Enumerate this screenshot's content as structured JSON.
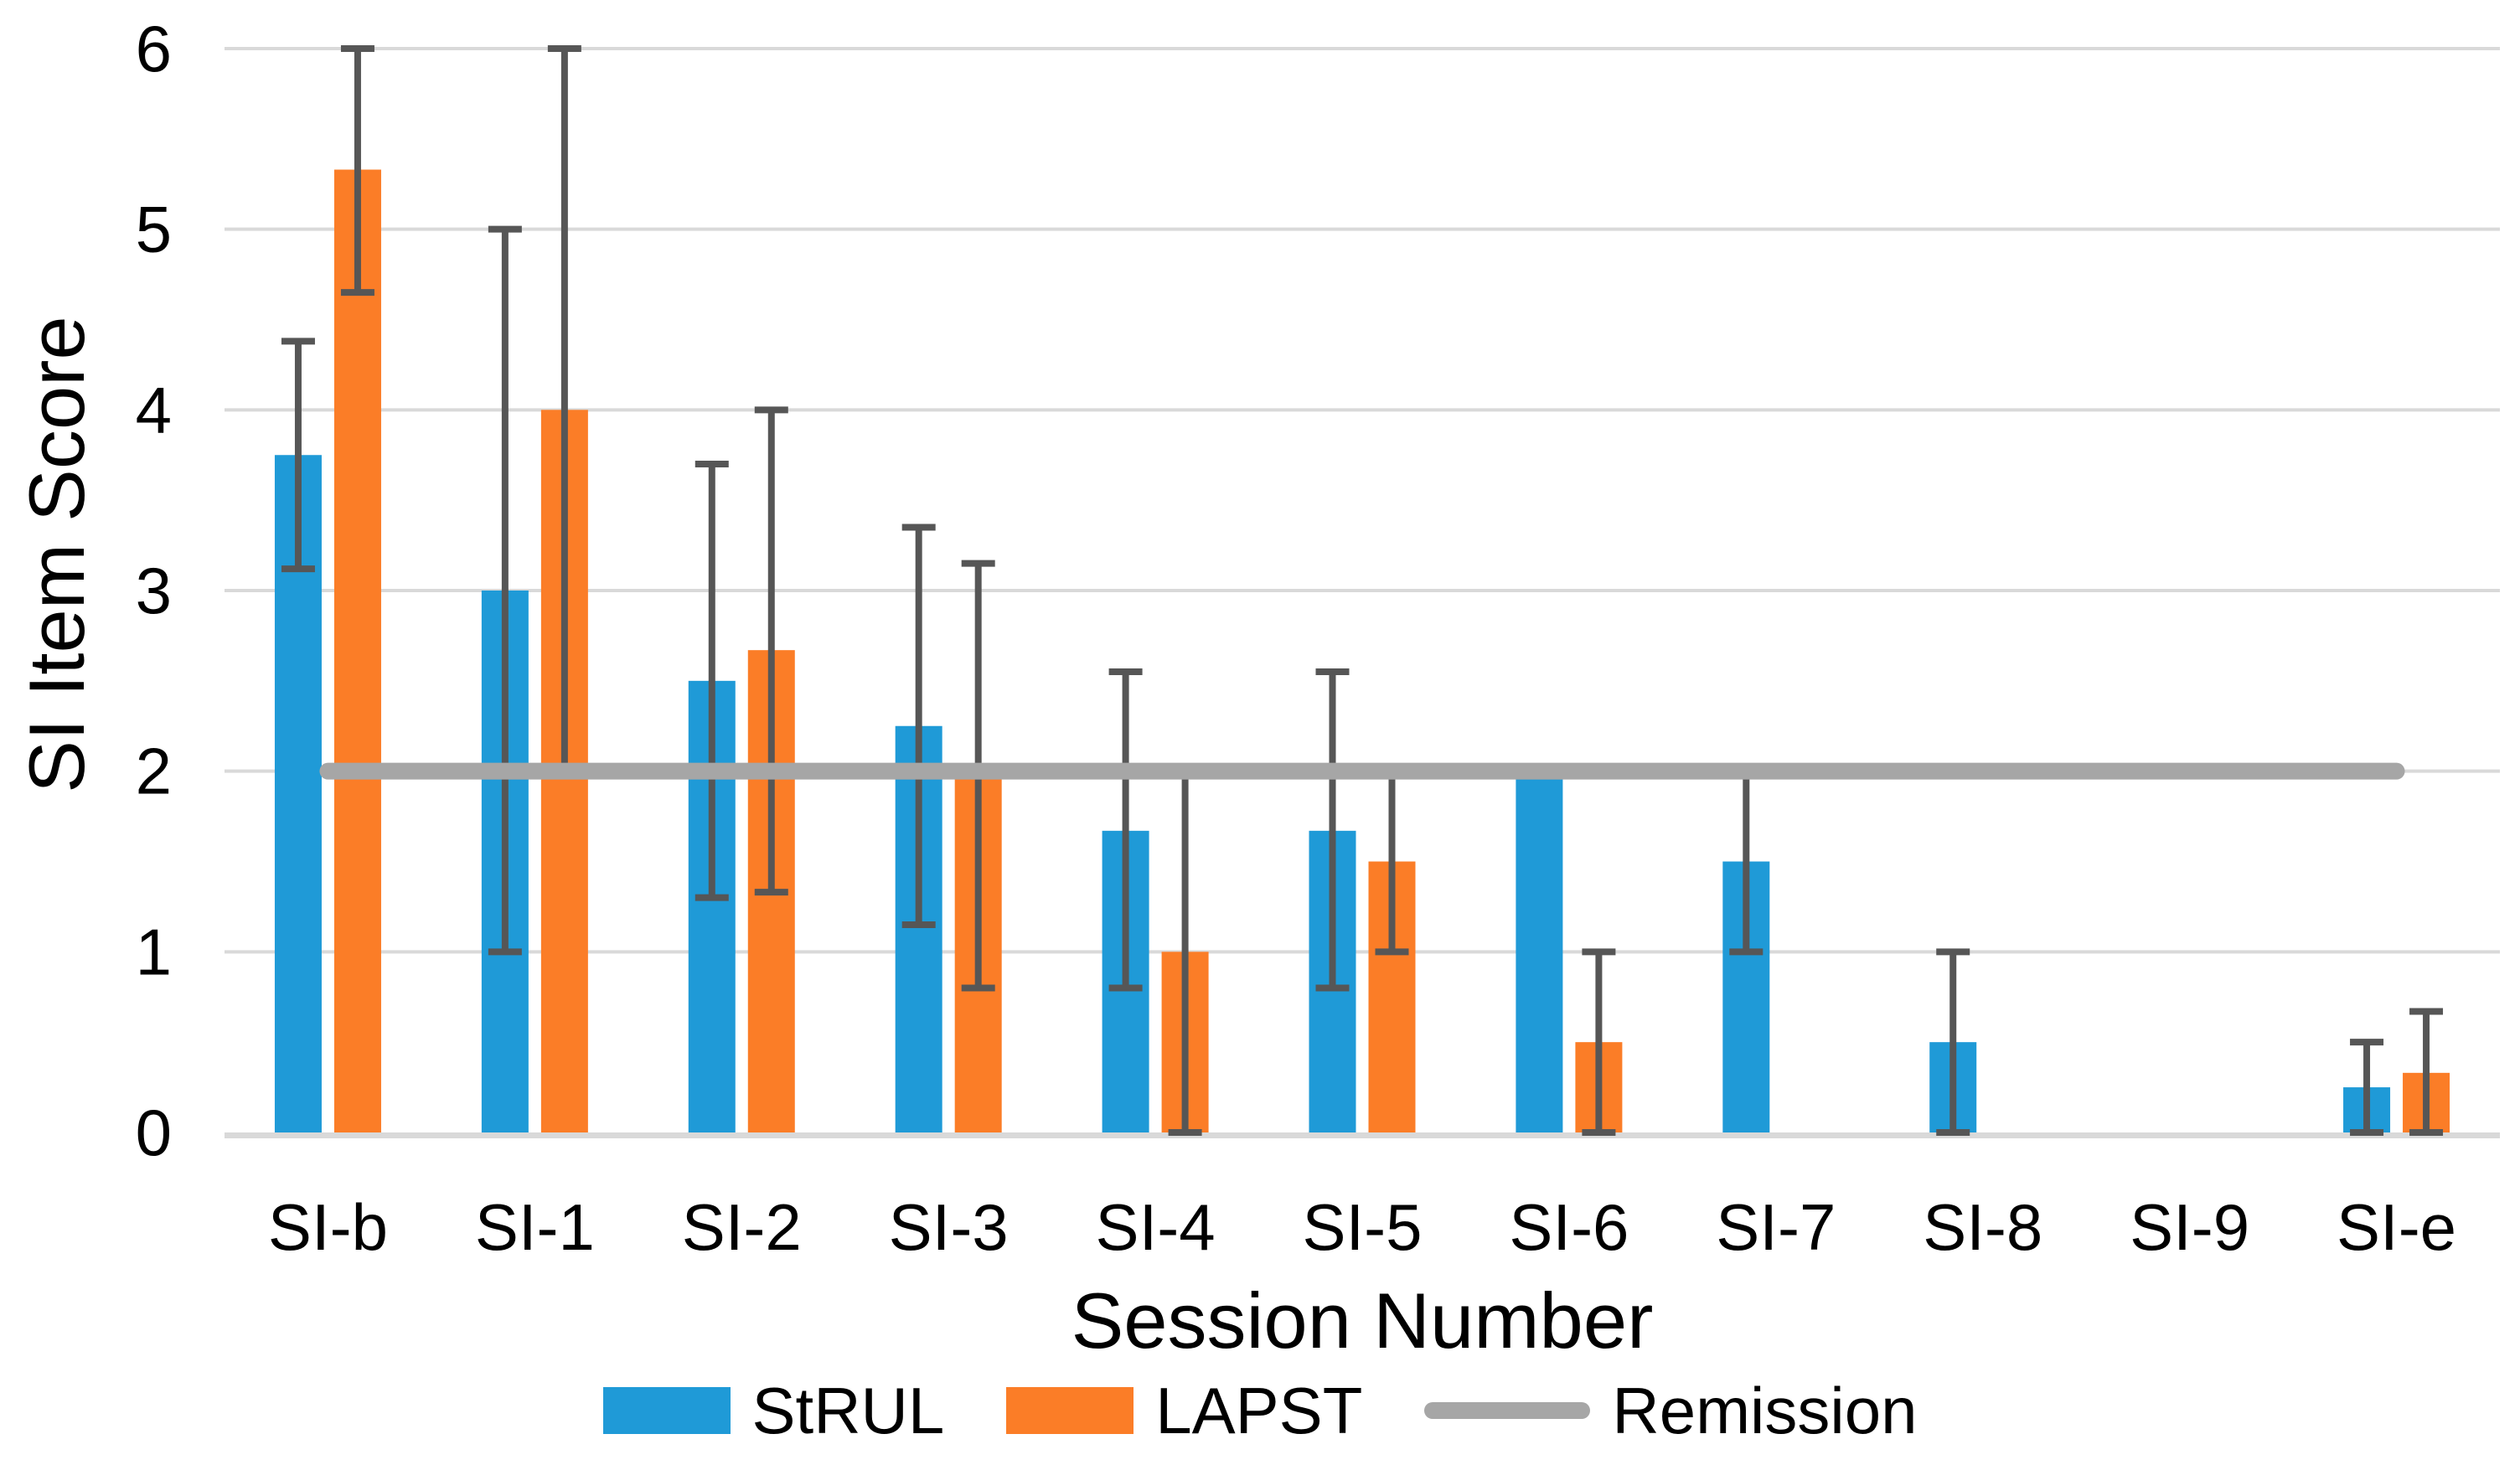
{
  "chart_data": {
    "type": "bar",
    "title": "",
    "xlabel": "Session Number",
    "ylabel": "SI Item Score",
    "ylim": [
      0,
      6
    ],
    "y_ticks": [
      0,
      1,
      2,
      3,
      4,
      5,
      6
    ],
    "grid": "horizontal",
    "legend_position": "bottom",
    "categories": [
      "SI-b",
      "SI-1",
      "SI-2",
      "SI-3",
      "SI-4",
      "SI-5",
      "SI-6",
      "SI-7",
      "SI-8",
      "SI-9",
      "SI-e"
    ],
    "series": [
      {
        "name": "StRUL",
        "color": "#1F9AD7",
        "values": [
          3.75,
          3.0,
          2.5,
          2.25,
          1.67,
          1.67,
          2.0,
          1.5,
          0.5,
          null,
          0.25
        ],
        "error_low": [
          3.12,
          1.0,
          1.3,
          1.15,
          0.8,
          0.8,
          null,
          1.0,
          0.0,
          null,
          0.0
        ],
        "error_high": [
          4.38,
          5.0,
          3.7,
          3.35,
          2.55,
          2.55,
          null,
          2.0,
          1.0,
          null,
          0.5
        ]
      },
      {
        "name": "LAPST",
        "color": "#FB7D27",
        "values": [
          5.33,
          4.0,
          2.67,
          2.0,
          1.0,
          1.5,
          0.5,
          null,
          null,
          null,
          0.33
        ],
        "error_low": [
          4.65,
          2.0,
          1.33,
          0.8,
          0.0,
          1.0,
          0.0,
          null,
          null,
          null,
          0.0
        ],
        "error_high": [
          6.0,
          6.0,
          4.0,
          3.15,
          2.0,
          2.0,
          1.0,
          null,
          null,
          null,
          0.67
        ]
      }
    ],
    "remission": {
      "label": "Remission",
      "value": 2,
      "color": "#A6A6A6",
      "span": [
        "SI-b",
        "SI-e"
      ]
    },
    "error_bar_color": "#565656",
    "gridline_color": "#D9D9D9",
    "axis_text_color": "#000000",
    "background_color": "#FFFFFF"
  }
}
